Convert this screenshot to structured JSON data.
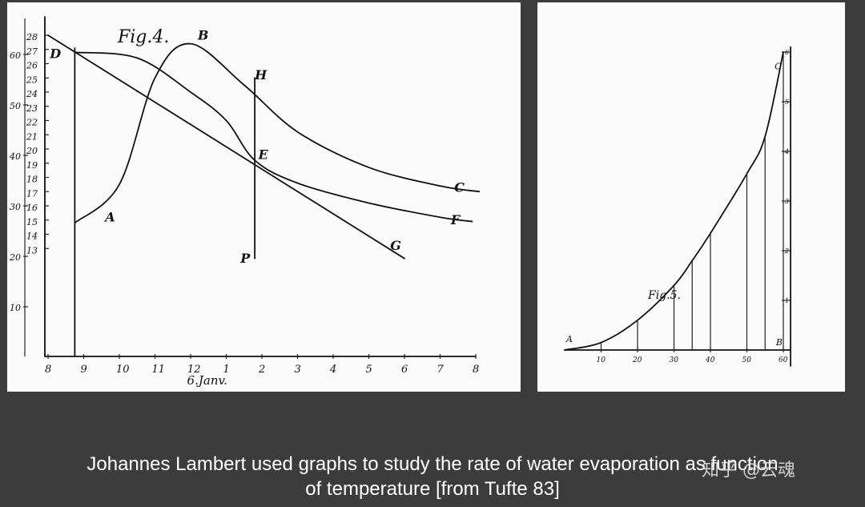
{
  "caption": {
    "line1": "Johannes Lambert used graphs to study the rate of water evaporation as function",
    "line2": "of temperature [from Tufte 83]"
  },
  "watermark": "知乎 @云魂",
  "chart_data": [
    {
      "type": "line",
      "title": "Fig.4.",
      "xlabel": "6.Janv.",
      "x_ticks": [
        "8",
        "9",
        "10",
        "11",
        "12",
        "1",
        "2",
        "3",
        "4",
        "5",
        "6",
        "7",
        "8"
      ],
      "y_ticks_outer": [
        "10",
        "20",
        "30",
        "40",
        "50",
        "60"
      ],
      "y_ticks_inner": [
        "13",
        "14",
        "15",
        "16",
        "17",
        "18",
        "19",
        "20",
        "21",
        "22",
        "23",
        "24",
        "25",
        "26",
        "27",
        "28"
      ],
      "point_labels": [
        "A",
        "B",
        "C",
        "D",
        "E",
        "F",
        "G",
        "H",
        "P"
      ],
      "series": [
        {
          "label": "A–B–C",
          "points": [
            [
              8.75,
              14.8
            ],
            [
              10.0,
              17.5
            ],
            [
              11.0,
              25.0
            ],
            [
              12.0,
              27.4
            ],
            [
              13.5,
              24.5
            ],
            [
              15.0,
              21.2
            ],
            [
              17.0,
              18.7
            ],
            [
              19.0,
              17.4
            ],
            [
              20.1,
              17.0
            ]
          ]
        },
        {
          "label": "D–E–F",
          "points": [
            [
              8.75,
              26.8
            ],
            [
              10.5,
              26.4
            ],
            [
              12.0,
              24.0
            ],
            [
              13.0,
              22.0
            ],
            [
              13.8,
              19.2
            ],
            [
              15.0,
              17.6
            ],
            [
              17.0,
              16.2
            ],
            [
              19.0,
              15.2
            ],
            [
              19.9,
              14.9
            ]
          ]
        },
        {
          "label": "G",
          "points": [
            [
              8.0,
              28.0
            ],
            [
              18.0,
              12.3
            ]
          ]
        },
        {
          "label": "H–P",
          "points": [
            [
              13.8,
              25.0
            ],
            [
              13.8,
              12.3
            ]
          ]
        }
      ]
    },
    {
      "type": "line",
      "title": "Fig.5.",
      "x_ticks": [
        "10",
        "20",
        "30",
        "40",
        "50",
        "60"
      ],
      "y_ticks": [
        "1",
        "2",
        "3",
        "4",
        "5",
        "6"
      ],
      "point_labels": [
        "A",
        "B",
        "C"
      ],
      "series": [
        {
          "label": "A–C",
          "points": [
            [
              0,
              0
            ],
            [
              10,
              0.15
            ],
            [
              20,
              0.6
            ],
            [
              30,
              1.3
            ],
            [
              35,
              1.8
            ],
            [
              40,
              2.35
            ],
            [
              50,
              3.55
            ],
            [
              55,
              4.3
            ],
            [
              60,
              6.0
            ]
          ]
        }
      ]
    }
  ]
}
